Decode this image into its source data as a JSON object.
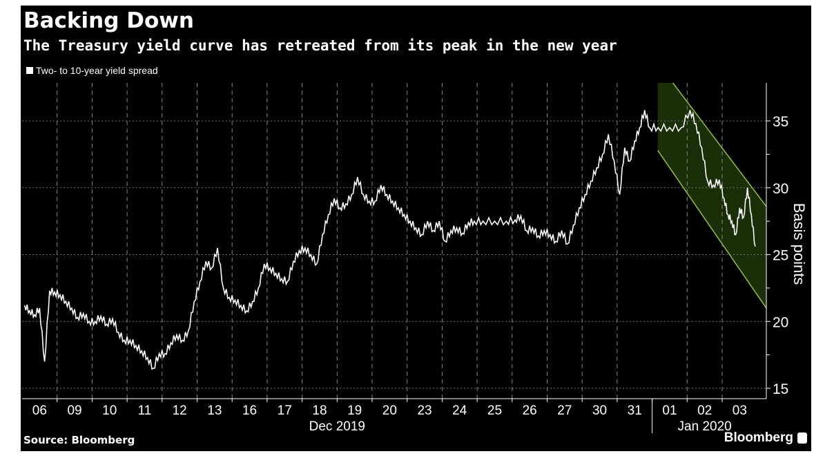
{
  "title": "Backing Down",
  "subtitle": "The Treasury yield curve has retreated from its peak in the new year",
  "source": "Source: Bloomberg",
  "brand": "Bloomberg",
  "colors": {
    "background": "#000000",
    "line": "#ffffff",
    "channel_fill": "#1a2e08",
    "channel_edge": "#8fc43a"
  },
  "chart_data": {
    "type": "line",
    "title": "Backing Down",
    "subtitle": "The Treasury yield curve has retreated from its peak in the new year",
    "ylabel": "Basis points",
    "ylim": [
      15,
      37.8
    ],
    "yticks": [
      15,
      20,
      25,
      30,
      35
    ],
    "grid": true,
    "legend_position": "top-left",
    "x_tick_labels": [
      "06",
      "09",
      "10",
      "11",
      "12",
      "13",
      "16",
      "17",
      "18",
      "19",
      "20",
      "23",
      "24",
      "25",
      "26",
      "27",
      "30",
      "31",
      "01",
      "02",
      "03"
    ],
    "x_group_labels": [
      {
        "label": "Dec 2019",
        "from": "06",
        "to": "31"
      },
      {
        "label": "Jan 2020",
        "from": "01",
        "to": "03"
      }
    ],
    "series": [
      {
        "name": "Two- to 10-year yield spread",
        "intraday": [
          {
            "day": "06",
            "values": [
              21.2,
              20.8,
              20.5,
              21,
              17,
              22.3,
              22.2
            ]
          },
          {
            "day": "09",
            "values": [
              22,
              21.5,
              21,
              20.3,
              20.6,
              20
            ]
          },
          {
            "day": "10",
            "values": [
              20,
              20.4,
              19.8,
              20.2,
              19.2,
              18.6
            ]
          },
          {
            "day": "11",
            "values": [
              18.6,
              18.2,
              17.8,
              17.3,
              16.5,
              17.6
            ]
          },
          {
            "day": "12",
            "values": [
              17.6,
              18.4,
              19,
              18.6,
              19.3,
              21.5
            ]
          },
          {
            "day": "13",
            "values": [
              23,
              24.5,
              24,
              25.5,
              22.5,
              21.8
            ]
          },
          {
            "day": "16",
            "values": [
              21.6,
              21.2,
              20.8,
              21.5,
              22.5,
              24.3
            ]
          },
          {
            "day": "17",
            "values": [
              24,
              23.6,
              23.2,
              23,
              24.5,
              25.3
            ]
          },
          {
            "day": "18",
            "values": [
              25.5,
              25,
              24.3,
              26.5,
              28,
              29.2
            ]
          },
          {
            "day": "19",
            "values": [
              28.5,
              28.8,
              29.5,
              30.8,
              29.5,
              29
            ]
          },
          {
            "day": "20",
            "values": [
              29,
              30.2,
              29.5,
              29,
              28.5,
              28
            ]
          },
          {
            "day": "23",
            "values": [
              27.5,
              27,
              26.5,
              27.5,
              26.8,
              27.5
            ]
          },
          {
            "day": "24",
            "values": [
              26,
              26.8,
              27,
              26.6,
              27.4,
              27.5
            ]
          },
          {
            "day": "25",
            "values": [
              27.5,
              27.5,
              27.5
            ]
          },
          {
            "day": "26",
            "values": [
              27.6,
              27.9,
              26.8,
              27,
              26.4,
              26.8
            ]
          },
          {
            "day": "27",
            "values": [
              26.5,
              26,
              26.8,
              25.8,
              27.2,
              28.5
            ]
          },
          {
            "day": "30",
            "values": [
              29.5,
              30.5,
              31.5,
              32.5,
              34,
              32
            ]
          },
          {
            "day": "31",
            "values": [
              29.5,
              33,
              32,
              33.5,
              34.5,
              35.8,
              34.5
            ]
          },
          {
            "day": "01",
            "values": [
              34.5,
              34.5,
              34.5
            ]
          },
          {
            "day": "02",
            "values": [
              35.8,
              34.8,
              33,
              30.5,
              30.2,
              30.6
            ]
          },
          {
            "day": "03",
            "values": [
              29.2,
              28,
              27.5,
              26.5,
              28.5,
              27.8,
              30,
              28,
              25.6
            ]
          }
        ]
      }
    ],
    "annotations": [
      {
        "type": "downward channel",
        "start_day": "01",
        "upper": [
          37.8,
          28.6
        ],
        "lower": [
          32.8,
          21.0
        ]
      }
    ]
  }
}
